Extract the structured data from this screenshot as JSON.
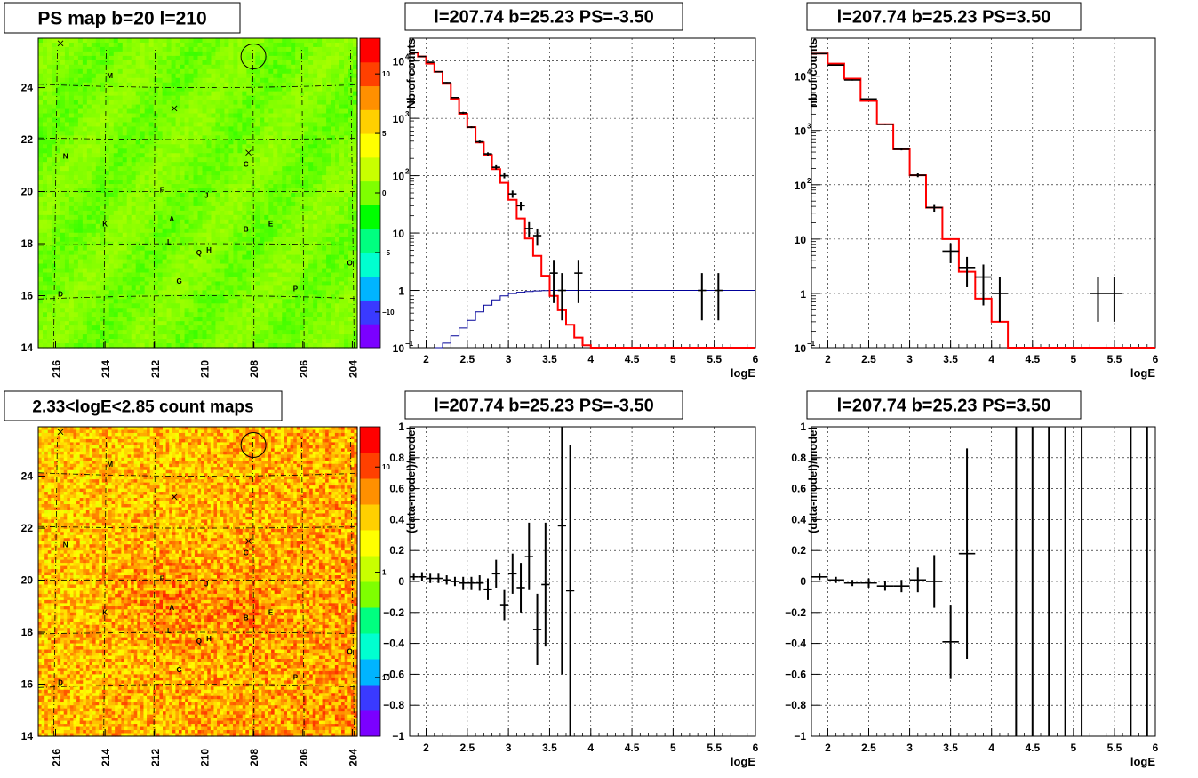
{
  "chart_data": [
    {
      "type": "heatmap",
      "title": "PS map b=20 l=210",
      "x_ticks": [
        "216",
        "214",
        "212",
        "210",
        "208",
        "206",
        "204"
      ],
      "y_ticks": [
        "14",
        "16",
        "18",
        "20",
        "22",
        "24"
      ],
      "colorbar_ticks": [
        "10",
        "5",
        "0",
        "−5",
        "−10"
      ],
      "colorbar_range": [
        -13,
        13
      ],
      "background_value": 0,
      "colorscale": [
        "#7b00ff",
        "#3a3aff",
        "#00b4ff",
        "#00ffd0",
        "#00ff80",
        "#00ff00",
        "#7fff00",
        "#c8ff00",
        "#ffff00",
        "#ffd000",
        "#ff9000",
        "#ff4000",
        "#ff0000"
      ],
      "sources": [
        {
          "label": "M",
          "l": 213.8,
          "b": 24.5
        },
        {
          "label": "N",
          "l": 215.6,
          "b": 21.4
        },
        {
          "label": "C",
          "l": 208.3,
          "b": 21.1
        },
        {
          "label": "F",
          "l": 211.7,
          "b": 20.1
        },
        {
          "label": "J",
          "l": 209.9,
          "b": 19.9
        },
        {
          "label": "A",
          "l": 211.3,
          "b": 19.0
        },
        {
          "label": "K",
          "l": 214.0,
          "b": 18.8
        },
        {
          "label": "B",
          "l": 208.3,
          "b": 18.6
        },
        {
          "label": "E",
          "l": 207.3,
          "b": 18.8
        },
        {
          "label": "L",
          "l": 211.4,
          "b": 18.1
        },
        {
          "label": "H",
          "l": 209.8,
          "b": 17.8
        },
        {
          "label": "Q",
          "l": 210.2,
          "b": 17.7
        },
        {
          "label": "O",
          "l": 204.1,
          "b": 17.3
        },
        {
          "label": "G",
          "l": 211.0,
          "b": 16.6
        },
        {
          "label": "P",
          "l": 206.3,
          "b": 16.3
        },
        {
          "label": "D",
          "l": 215.8,
          "b": 16.1
        }
      ],
      "crosses": [
        {
          "l": 215.8,
          "b": 25.7
        },
        {
          "l": 211.2,
          "b": 23.2
        },
        {
          "l": 208.2,
          "b": 21.5
        }
      ],
      "circle": {
        "l": 208.0,
        "b": 25.2
      }
    },
    {
      "type": "line",
      "title": "l=207.74 b=25.23 PS=-3.50",
      "xlabel": "logE",
      "ylabel": "Nb of counts",
      "xlim": [
        1.8,
        6
      ],
      "ylim": [
        0.1,
        25000
      ],
      "yscale": "log",
      "x_ticks": [
        "2",
        "2.5",
        "3",
        "3.5",
        "4",
        "4.5",
        "5",
        "5.5",
        "6"
      ],
      "y_ticks": [
        {
          "v": 0.1,
          "t": "10"
        },
        {
          "v": 1,
          "t": "1"
        },
        {
          "v": 10,
          "t": "10"
        },
        {
          "v": 100,
          "t": "10"
        },
        {
          "v": 1000,
          "t": "10"
        },
        {
          "v": 10000,
          "t": "10"
        }
      ],
      "model": {
        "color": "#ff0000",
        "edges": [
          1.8,
          1.9,
          2.0,
          2.1,
          2.2,
          2.3,
          2.4,
          2.5,
          2.6,
          2.7,
          2.8,
          2.9,
          3.0,
          3.1,
          3.2,
          3.3,
          3.4,
          3.5,
          3.6,
          3.7,
          3.8,
          3.9,
          4.0,
          4.1,
          4.2,
          4.3,
          6.0
        ],
        "values": [
          14000,
          12000,
          9000,
          6500,
          4000,
          2200,
          1200,
          700,
          380,
          230,
          130,
          75,
          38,
          18,
          8,
          4,
          1.8,
          0.8,
          0.45,
          0.25,
          0.15,
          0.11,
          0.1,
          0.1,
          0.1,
          0.1
        ]
      },
      "acceptance": {
        "color": "#000099",
        "edges": [
          2.1,
          2.2,
          2.3,
          2.4,
          2.5,
          2.6,
          2.7,
          2.8,
          2.9,
          3.0,
          3.1,
          3.2,
          3.3,
          3.4,
          3.5,
          3.6,
          3.7,
          3.8,
          6.0
        ],
        "values": [
          0.1,
          0.12,
          0.16,
          0.22,
          0.3,
          0.42,
          0.55,
          0.68,
          0.8,
          0.88,
          0.93,
          0.96,
          0.98,
          0.99,
          1,
          1,
          1,
          1
        ]
      },
      "points": [
        {
          "x": 1.85,
          "y": 14000,
          "dx": 0.05,
          "lo": 13800,
          "hi": 14200
        },
        {
          "x": 1.95,
          "y": 12000,
          "dx": 0.05,
          "lo": 11800,
          "hi": 12200
        },
        {
          "x": 2.05,
          "y": 9500,
          "dx": 0.05,
          "lo": 9300,
          "hi": 9700
        },
        {
          "x": 2.15,
          "y": 6500,
          "dx": 0.05,
          "lo": 6400,
          "hi": 6600
        },
        {
          "x": 2.25,
          "y": 4200,
          "dx": 0.05,
          "lo": 4100,
          "hi": 4300
        },
        {
          "x": 2.35,
          "y": 2300,
          "dx": 0.05,
          "lo": 2250,
          "hi": 2350
        },
        {
          "x": 2.45,
          "y": 1250,
          "dx": 0.05,
          "lo": 1200,
          "hi": 1300
        },
        {
          "x": 2.55,
          "y": 700,
          "dx": 0.05,
          "lo": 675,
          "hi": 725
        },
        {
          "x": 2.65,
          "y": 390,
          "dx": 0.05,
          "lo": 370,
          "hi": 410
        },
        {
          "x": 2.75,
          "y": 240,
          "dx": 0.05,
          "lo": 225,
          "hi": 255
        },
        {
          "x": 2.85,
          "y": 140,
          "dx": 0.05,
          "lo": 128,
          "hi": 152
        },
        {
          "x": 2.95,
          "y": 100,
          "dx": 0.05,
          "lo": 90,
          "hi": 110
        },
        {
          "x": 3.05,
          "y": 48,
          "dx": 0.05,
          "lo": 41,
          "hi": 55
        },
        {
          "x": 3.15,
          "y": 30,
          "dx": 0.05,
          "lo": 25,
          "hi": 35
        },
        {
          "x": 3.25,
          "y": 12,
          "dx": 0.05,
          "lo": 8.5,
          "hi": 15.5
        },
        {
          "x": 3.35,
          "y": 9,
          "dx": 0.05,
          "lo": 6,
          "hi": 12
        },
        {
          "x": 3.55,
          "y": 2,
          "dx": 0.05,
          "lo": 0.6,
          "hi": 3.4
        },
        {
          "x": 3.65,
          "y": 1,
          "dx": 0.05,
          "lo": 0.3,
          "hi": 2
        },
        {
          "x": 3.85,
          "y": 2,
          "dx": 0.05,
          "lo": 0.6,
          "hi": 3.4
        },
        {
          "x": 5.35,
          "y": 1,
          "dx": 0.05,
          "lo": 0.3,
          "hi": 2
        },
        {
          "x": 5.55,
          "y": 1,
          "dx": 0.05,
          "lo": 0.3,
          "hi": 2
        }
      ]
    },
    {
      "type": "line",
      "title": "l=207.74 b=25.23 PS=3.50",
      "xlabel": "logE",
      "ylabel": "nb of counts",
      "xlim": [
        1.8,
        6
      ],
      "ylim": [
        0.1,
        50000
      ],
      "yscale": "log",
      "x_ticks": [
        "2",
        "2.5",
        "3",
        "3.5",
        "4",
        "4.5",
        "5",
        "5.5",
        "6"
      ],
      "y_ticks": [
        {
          "v": 0.1,
          "t": "10"
        },
        {
          "v": 1,
          "t": "1"
        },
        {
          "v": 10,
          "t": "10"
        },
        {
          "v": 100,
          "t": "10"
        },
        {
          "v": 1000,
          "t": "10"
        },
        {
          "v": 10000,
          "t": "10"
        }
      ],
      "model": {
        "color": "#ff0000",
        "edges": [
          1.8,
          2.0,
          2.2,
          2.4,
          2.6,
          2.8,
          3.0,
          3.2,
          3.4,
          3.6,
          3.8,
          4.0,
          4.2,
          6.0
        ],
        "values": [
          26000,
          17000,
          9000,
          3500,
          1300,
          450,
          150,
          38,
          10,
          2.5,
          0.8,
          0.3,
          0.1
        ]
      },
      "points": [
        {
          "x": 1.9,
          "y": 26000,
          "dx": 0.1,
          "lo": 25600,
          "hi": 26400
        },
        {
          "x": 2.1,
          "y": 16000,
          "dx": 0.1,
          "lo": 15700,
          "hi": 16300
        },
        {
          "x": 2.3,
          "y": 8500,
          "dx": 0.1,
          "lo": 8300,
          "hi": 8700
        },
        {
          "x": 2.5,
          "y": 3800,
          "dx": 0.1,
          "lo": 3700,
          "hi": 3900
        },
        {
          "x": 2.7,
          "y": 1300,
          "dx": 0.1,
          "lo": 1260,
          "hi": 1340
        },
        {
          "x": 2.9,
          "y": 450,
          "dx": 0.1,
          "lo": 430,
          "hi": 470
        },
        {
          "x": 3.1,
          "y": 150,
          "dx": 0.1,
          "lo": 138,
          "hi": 162
        },
        {
          "x": 3.3,
          "y": 38,
          "dx": 0.1,
          "lo": 32,
          "hi": 44
        },
        {
          "x": 3.5,
          "y": 6,
          "dx": 0.1,
          "lo": 3.6,
          "hi": 8.4
        },
        {
          "x": 3.7,
          "y": 3,
          "dx": 0.1,
          "lo": 1.3,
          "hi": 4.7
        },
        {
          "x": 3.9,
          "y": 2,
          "dx": 0.1,
          "lo": 0.6,
          "hi": 3.4
        },
        {
          "x": 4.1,
          "y": 1,
          "dx": 0.1,
          "lo": 0.3,
          "hi": 2
        },
        {
          "x": 5.3,
          "y": 1,
          "dx": 0.1,
          "lo": 0.3,
          "hi": 2
        },
        {
          "x": 5.5,
          "y": 1,
          "dx": 0.1,
          "lo": 0.3,
          "hi": 2
        }
      ]
    },
    {
      "type": "heatmap",
      "title": "2.33<logE<2.85 count maps",
      "x_ticks": [
        "216",
        "214",
        "212",
        "210",
        "208",
        "206",
        "204"
      ],
      "y_ticks": [
        "14",
        "16",
        "18",
        "20",
        "22",
        "24"
      ],
      "colorbar_ticks": [
        "10",
        "1",
        "10"
      ],
      "colorbar_scale": "log",
      "colorscale": [
        "#7b00ff",
        "#3a3aff",
        "#00b4ff",
        "#00ffd0",
        "#00ff80",
        "#7fff00",
        "#c8ff00",
        "#ffff00",
        "#ffd000",
        "#ff9000",
        "#ff4000",
        "#ff0000"
      ],
      "sources": [
        {
          "label": "M",
          "l": 213.8,
          "b": 24.5
        },
        {
          "label": "N",
          "l": 215.6,
          "b": 21.4
        },
        {
          "label": "C",
          "l": 208.3,
          "b": 21.1
        },
        {
          "label": "F",
          "l": 211.7,
          "b": 20.1
        },
        {
          "label": "J",
          "l": 209.9,
          "b": 19.9
        },
        {
          "label": "A",
          "l": 211.3,
          "b": 19.0
        },
        {
          "label": "K",
          "l": 214.0,
          "b": 18.8
        },
        {
          "label": "B",
          "l": 208.3,
          "b": 18.6
        },
        {
          "label": "E",
          "l": 207.3,
          "b": 18.8
        },
        {
          "label": "L",
          "l": 211.4,
          "b": 18.1
        },
        {
          "label": "H",
          "l": 209.8,
          "b": 17.8
        },
        {
          "label": "Q",
          "l": 210.2,
          "b": 17.7
        },
        {
          "label": "O",
          "l": 204.1,
          "b": 17.3
        },
        {
          "label": "G",
          "l": 211.0,
          "b": 16.6
        },
        {
          "label": "P",
          "l": 206.3,
          "b": 16.3
        },
        {
          "label": "D",
          "l": 215.8,
          "b": 16.1
        }
      ],
      "crosses": [
        {
          "l": 215.8,
          "b": 25.7
        },
        {
          "l": 211.2,
          "b": 23.2
        },
        {
          "l": 208.2,
          "b": 21.5
        }
      ],
      "circle": {
        "l": 208.0,
        "b": 25.2
      }
    },
    {
      "type": "scatter",
      "title": "l=207.74 b=25.23 PS=-3.50",
      "xlabel": "logE",
      "ylabel": "(data-model)/model",
      "xlim": [
        1.8,
        6
      ],
      "ylim": [
        -1,
        1
      ],
      "x_ticks": [
        "2",
        "2.5",
        "3",
        "3.5",
        "4",
        "4.5",
        "5",
        "5.5",
        "6"
      ],
      "y_ticks": [
        "−1",
        "−0.8",
        "−0.6",
        "−0.4",
        "−0.2",
        "0",
        "0.2",
        "0.4",
        "0.6",
        "0.8",
        "1"
      ],
      "points": [
        {
          "x": 1.85,
          "y": 0.03,
          "dx": 0.05,
          "lo": 0.01,
          "hi": 0.05
        },
        {
          "x": 1.95,
          "y": 0.03,
          "dx": 0.05,
          "lo": 0.0,
          "hi": 0.06
        },
        {
          "x": 2.05,
          "y": 0.02,
          "dx": 0.05,
          "lo": -0.01,
          "hi": 0.05
        },
        {
          "x": 2.15,
          "y": 0.02,
          "dx": 0.05,
          "lo": -0.01,
          "hi": 0.05
        },
        {
          "x": 2.25,
          "y": 0.01,
          "dx": 0.05,
          "lo": -0.02,
          "hi": 0.04
        },
        {
          "x": 2.35,
          "y": 0.0,
          "dx": 0.05,
          "lo": -0.03,
          "hi": 0.03
        },
        {
          "x": 2.45,
          "y": -0.01,
          "dx": 0.05,
          "lo": -0.05,
          "hi": 0.03
        },
        {
          "x": 2.55,
          "y": -0.01,
          "dx": 0.05,
          "lo": -0.05,
          "hi": 0.03
        },
        {
          "x": 2.65,
          "y": -0.01,
          "dx": 0.05,
          "lo": -0.06,
          "hi": 0.04
        },
        {
          "x": 2.75,
          "y": -0.05,
          "dx": 0.05,
          "lo": -0.12,
          "hi": 0.02
        },
        {
          "x": 2.85,
          "y": 0.05,
          "dx": 0.05,
          "lo": -0.04,
          "hi": 0.14
        },
        {
          "x": 2.95,
          "y": -0.15,
          "dx": 0.05,
          "lo": -0.25,
          "hi": -0.05
        },
        {
          "x": 3.05,
          "y": 0.05,
          "dx": 0.05,
          "lo": -0.08,
          "hi": 0.18
        },
        {
          "x": 3.15,
          "y": -0.04,
          "dx": 0.05,
          "lo": -0.2,
          "hi": 0.12
        },
        {
          "x": 3.25,
          "y": 0.16,
          "dx": 0.05,
          "lo": -0.05,
          "hi": 0.38
        },
        {
          "x": 3.35,
          "y": -0.31,
          "dx": 0.05,
          "lo": -0.54,
          "hi": -0.08
        },
        {
          "x": 3.45,
          "y": -0.02,
          "dx": 0.05,
          "lo": -0.42,
          "hi": 0.38
        },
        {
          "x": 3.65,
          "y": 0.36,
          "dx": 0.05,
          "lo": -0.6,
          "hi": 1.0
        },
        {
          "x": 3.75,
          "y": -0.06,
          "dx": 0.05,
          "lo": -1.0,
          "hi": 0.88
        }
      ]
    },
    {
      "type": "scatter",
      "title": "l=207.74 b=25.23 PS=3.50",
      "xlabel": "logE",
      "ylabel": "(data-model)/model",
      "xlim": [
        1.8,
        6
      ],
      "ylim": [
        -1,
        1
      ],
      "x_ticks": [
        "2",
        "2.5",
        "3",
        "3.5",
        "4",
        "4.5",
        "5",
        "5.5",
        "6"
      ],
      "y_ticks": [
        "−1",
        "−0.8",
        "−0.6",
        "−0.4",
        "−0.2",
        "0",
        "0.2",
        "0.4",
        "0.6",
        "0.8",
        "1"
      ],
      "points": [
        {
          "x": 1.9,
          "y": 0.03,
          "dx": 0.1,
          "lo": 0.01,
          "hi": 0.05
        },
        {
          "x": 2.1,
          "y": 0.01,
          "dx": 0.1,
          "lo": -0.01,
          "hi": 0.03
        },
        {
          "x": 2.3,
          "y": -0.01,
          "dx": 0.1,
          "lo": -0.03,
          "hi": 0.01
        },
        {
          "x": 2.5,
          "y": -0.01,
          "dx": 0.1,
          "lo": -0.04,
          "hi": 0.02
        },
        {
          "x": 2.7,
          "y": -0.03,
          "dx": 0.1,
          "lo": -0.06,
          "hi": 0.0
        },
        {
          "x": 2.9,
          "y": -0.03,
          "dx": 0.1,
          "lo": -0.07,
          "hi": 0.01
        },
        {
          "x": 3.1,
          "y": 0.01,
          "dx": 0.1,
          "lo": -0.07,
          "hi": 0.09
        },
        {
          "x": 3.3,
          "y": 0.0,
          "dx": 0.1,
          "lo": -0.17,
          "hi": 0.17
        },
        {
          "x": 3.5,
          "y": -0.39,
          "dx": 0.1,
          "lo": -0.63,
          "hi": -0.15
        },
        {
          "x": 3.7,
          "y": 0.18,
          "dx": 0.1,
          "lo": -0.5,
          "hi": 0.86
        },
        {
          "x": 4.3,
          "y": null,
          "lo": -1,
          "hi": 1
        },
        {
          "x": 4.5,
          "y": null,
          "lo": -1,
          "hi": 1
        },
        {
          "x": 4.7,
          "y": null,
          "lo": -1,
          "hi": 1
        },
        {
          "x": 4.9,
          "y": null,
          "lo": -1,
          "hi": 1
        },
        {
          "x": 5.1,
          "y": null,
          "lo": -1,
          "hi": 1
        },
        {
          "x": 5.7,
          "y": null,
          "lo": -1,
          "hi": 1
        },
        {
          "x": 5.9,
          "y": null,
          "lo": -1,
          "hi": 1
        }
      ]
    }
  ]
}
